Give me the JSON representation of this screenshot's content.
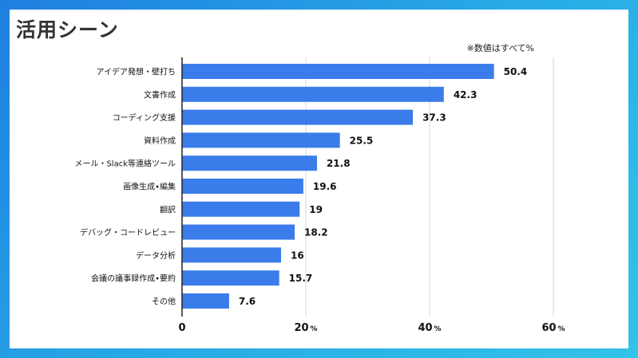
{
  "title": "活用シーン",
  "note": "※数値はすべて%",
  "colors": {
    "bar": "#3b7ceb",
    "grid": "#d4d4d4",
    "axis": "#222222"
  },
  "chart_data": {
    "type": "bar",
    "orientation": "horizontal",
    "categories": [
      "アイデア発想・壁打ち",
      "文書作成",
      "コーディング支援",
      "資料作成",
      "メール・Slack等連絡ツール",
      "画像生成•編集",
      "翻訳",
      "デバッグ・コードレビュー",
      "データ分析",
      "会議の議事録作成•要約",
      "その他"
    ],
    "values": [
      50.4,
      42.3,
      37.3,
      25.5,
      21.8,
      19.6,
      19,
      18.2,
      16,
      15.7,
      7.6
    ],
    "value_labels": [
      "50.4",
      "42.3",
      "37.3",
      "25.5",
      "21.8",
      "19.6",
      "19",
      "18.2",
      "16",
      "15.7",
      "7.6"
    ],
    "xlim": [
      0,
      60
    ],
    "ticks": [
      {
        "value": 0,
        "label": "0",
        "unit": ""
      },
      {
        "value": 20,
        "label": "20",
        "unit": "%"
      },
      {
        "value": 40,
        "label": "40",
        "unit": "%"
      },
      {
        "value": 60,
        "label": "60",
        "unit": "%"
      }
    ],
    "grid": true
  }
}
